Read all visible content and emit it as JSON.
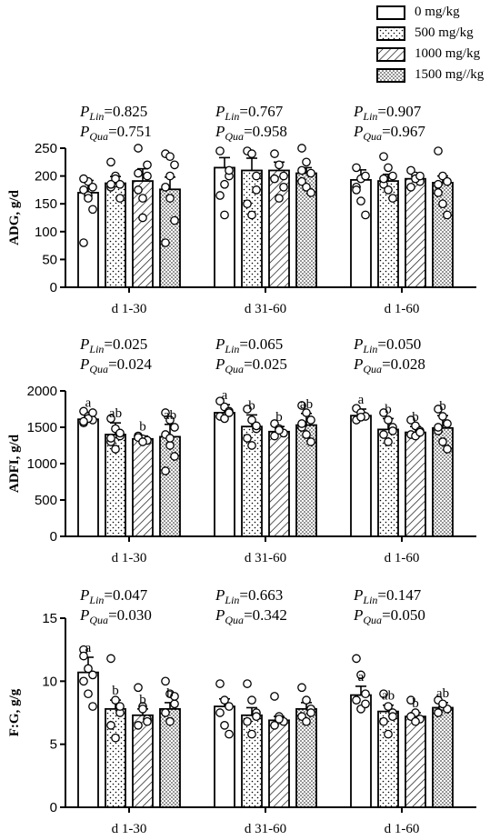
{
  "legend": {
    "entries": [
      {
        "label": "0 mg/kg",
        "pattern": "white"
      },
      {
        "label": "500 mg/kg",
        "pattern": "dots"
      },
      {
        "label": "1000 mg/kg",
        "pattern": "hatch"
      },
      {
        "label": "1500 mg//kg",
        "pattern": "dense-dots"
      }
    ]
  },
  "colors": {
    "bar_stroke": "#000000",
    "background": "#ffffff",
    "text": "#000000"
  },
  "chart_data": [
    {
      "type": "bar",
      "ylabel": "ADG, g/d",
      "ylim": [
        0,
        250
      ],
      "yticks": [
        0,
        50,
        100,
        150,
        200,
        250
      ],
      "categories": [
        "d 1-30",
        "d 31-60",
        "d 1-60"
      ],
      "series": [
        {
          "name": "0 mg/kg",
          "values": [
            170,
            215,
            193
          ],
          "errors": [
            22,
            18,
            18
          ],
          "letters": [
            "",
            "",
            ""
          ]
        },
        {
          "name": "500 mg/kg",
          "values": [
            187,
            210,
            191
          ],
          "errors": [
            12,
            22,
            12
          ],
          "letters": [
            "",
            "",
            ""
          ]
        },
        {
          "name": "1000 mg/kg",
          "values": [
            191,
            210,
            195
          ],
          "errors": [
            22,
            15,
            10
          ],
          "letters": [
            "",
            "",
            ""
          ]
        },
        {
          "name": "1500 mg//kg",
          "values": [
            176,
            205,
            188
          ],
          "errors": [
            22,
            10,
            12
          ],
          "letters": [
            "",
            "",
            ""
          ]
        }
      ],
      "points": [
        [
          [
            175,
            165,
            140,
            80,
            190,
            180,
            195,
            160
          ],
          [
            180,
            200,
            160,
            225,
            195,
            185,
            185
          ],
          [
            250,
            160,
            200,
            175,
            125,
            220,
            205
          ],
          [
            240,
            235,
            220,
            180,
            160,
            120,
            80,
            200
          ]
        ],
        [
          [
            245,
            185,
            200,
            165,
            130,
            210
          ],
          [
            245,
            240,
            200,
            150,
            130,
            175
          ],
          [
            240,
            220,
            180,
            195,
            160,
            200
          ],
          [
            250,
            225,
            205,
            190,
            180,
            170,
            210
          ]
        ],
        [
          [
            215,
            195,
            200,
            180,
            155,
            130,
            175
          ],
          [
            235,
            215,
            200,
            185,
            175,
            160,
            195
          ],
          [
            210,
            200,
            190,
            180,
            195,
            200
          ],
          [
            245,
            200,
            190,
            170,
            150,
            130,
            185
          ]
        ]
      ],
      "p_values": [
        {
          "lin_label": "P",
          "lin_sub": "Lin",
          "lin_value": "=0.825",
          "qua_label": "P",
          "qua_sub": "Qua",
          "qua_value": "=0.751"
        },
        {
          "lin_label": "P",
          "lin_sub": "Lin",
          "lin_value": "=0.767",
          "qua_label": "P",
          "qua_sub": "Qua",
          "qua_value": "=0.958"
        },
        {
          "lin_label": "P",
          "lin_sub": "Lin",
          "lin_value": "=0.907",
          "qua_label": "P",
          "qua_sub": "Qua",
          "qua_value": "=0.967"
        }
      ]
    },
    {
      "type": "bar",
      "ylabel": "ADFI, g/d",
      "ylim": [
        0,
        2000
      ],
      "yticks": [
        0,
        500,
        1000,
        1500,
        2000
      ],
      "categories": [
        "d 1-30",
        "d 31-60",
        "d 1-60"
      ],
      "series": [
        {
          "name": "0 mg/kg",
          "values": [
            1610,
            1700,
            1660
          ],
          "errors": [
            95,
            110,
            90
          ],
          "letters": [
            "a",
            "a",
            "a"
          ]
        },
        {
          "name": "500 mg/kg",
          "values": [
            1400,
            1510,
            1470
          ],
          "errors": [
            160,
            160,
            150
          ],
          "letters": [
            "ab",
            "b",
            "b"
          ]
        },
        {
          "name": "1000 mg/kg",
          "values": [
            1340,
            1440,
            1430
          ],
          "errors": [
            40,
            70,
            80
          ],
          "letters": [
            "b",
            "b",
            "b"
          ]
        },
        {
          "name": "1500 mg//kg",
          "values": [
            1370,
            1530,
            1490
          ],
          "errors": [
            170,
            160,
            170
          ],
          "letters": [
            "ab",
            "ab",
            "b"
          ]
        }
      ],
      "points": [
        [
          [
            1720,
            1650,
            1600,
            1560,
            1620,
            1700,
            1580
          ],
          [
            1620,
            1480,
            1380,
            1300,
            1200,
            1420,
            1350
          ],
          [
            1380,
            1340,
            1320,
            1360,
            1300
          ],
          [
            1700,
            1600,
            1500,
            1400,
            1250,
            1100,
            900,
            1350
          ]
        ],
        [
          [
            1860,
            1780,
            1720,
            1650,
            1620,
            1700
          ],
          [
            1750,
            1600,
            1480,
            1350,
            1250,
            1520
          ],
          [
            1550,
            1480,
            1420,
            1380,
            1460
          ],
          [
            1800,
            1700,
            1600,
            1500,
            1400,
            1300,
            1550
          ]
        ],
        [
          [
            1760,
            1700,
            1650,
            1600,
            1640
          ],
          [
            1700,
            1600,
            1500,
            1400,
            1300,
            1450
          ],
          [
            1600,
            1520,
            1450,
            1400,
            1380,
            1430
          ],
          [
            1750,
            1650,
            1550,
            1450,
            1300,
            1200,
            1500
          ]
        ]
      ],
      "p_values": [
        {
          "lin_label": "P",
          "lin_sub": "Lin",
          "lin_value": "=0.025",
          "qua_label": "P",
          "qua_sub": "Qua",
          "qua_value": "=0.024"
        },
        {
          "lin_label": "P",
          "lin_sub": "Lin",
          "lin_value": "=0.065",
          "qua_label": "P",
          "qua_sub": "Qua",
          "qua_value": "=0.025"
        },
        {
          "lin_label": "P",
          "lin_sub": "Lin",
          "lin_value": "=0.050",
          "qua_label": "P",
          "qua_sub": "Qua",
          "qua_value": "=0.028"
        }
      ]
    },
    {
      "type": "bar",
      "ylabel": "F:G, g/g",
      "ylim": [
        0,
        15
      ],
      "yticks": [
        0,
        5,
        10,
        15
      ],
      "categories": [
        "d 1-30",
        "d 31-60",
        "d 1-60"
      ],
      "series": [
        {
          "name": "0 mg/kg",
          "values": [
            10.7,
            8.0,
            8.9
          ],
          "errors": [
            1.2,
            0.6,
            0.7
          ],
          "letters": [
            "a",
            "",
            "a"
          ]
        },
        {
          "name": "500 mg/kg",
          "values": [
            7.8,
            7.3,
            7.6
          ],
          "errors": [
            0.7,
            0.6,
            0.5
          ],
          "letters": [
            "b",
            "",
            "ab"
          ]
        },
        {
          "name": "1000 mg/kg",
          "values": [
            7.3,
            6.9,
            7.2
          ],
          "errors": [
            0.5,
            0.3,
            0.3
          ],
          "letters": [
            "b",
            "",
            "b"
          ]
        },
        {
          "name": "1500 mg//kg",
          "values": [
            7.8,
            7.8,
            7.9
          ],
          "errors": [
            0.5,
            0.5,
            0.4
          ],
          "letters": [
            "b",
            "",
            "ab"
          ]
        }
      ],
      "points": [
        [
          [
            12.5,
            11.0,
            10.5,
            10.0,
            9.0,
            8.0,
            12.0
          ],
          [
            11.8,
            8.5,
            7.5,
            6.5,
            5.5,
            8.0
          ],
          [
            9.5,
            8.0,
            7.0,
            6.5,
            7.8,
            6.8
          ],
          [
            10.0,
            9.0,
            8.2,
            7.5,
            6.8,
            8.8
          ]
        ],
        [
          [
            9.8,
            8.5,
            8.0,
            7.5,
            6.5,
            5.8
          ],
          [
            9.8,
            8.5,
            7.5,
            6.8,
            5.8,
            7.2
          ],
          [
            8.8,
            7.2,
            6.8,
            6.5,
            7.0
          ],
          [
            9.5,
            8.5,
            7.8,
            7.2,
            6.8,
            7.5
          ]
        ],
        [
          [
            11.8,
            10.5,
            9.0,
            8.5,
            7.8,
            8.2
          ],
          [
            9.0,
            8.0,
            7.5,
            6.8,
            5.8,
            7.2
          ],
          [
            8.5,
            7.5,
            7.0,
            7.2,
            6.8
          ],
          [
            8.5,
            8.0,
            7.8,
            7.5,
            8.2
          ]
        ]
      ],
      "p_values": [
        {
          "lin_label": "P",
          "lin_sub": "Lin",
          "lin_value": "=0.047",
          "qua_label": "P",
          "qua_sub": "Qua",
          "qua_value": "=0.030"
        },
        {
          "lin_label": "P",
          "lin_sub": "Lin",
          "lin_value": "=0.663",
          "qua_label": "P",
          "qua_sub": "Qua",
          "qua_value": "=0.342"
        },
        {
          "lin_label": "P",
          "lin_sub": "Lin",
          "lin_value": "=0.147",
          "qua_label": "P",
          "qua_sub": "Qua",
          "qua_value": "=0.050"
        }
      ]
    }
  ]
}
